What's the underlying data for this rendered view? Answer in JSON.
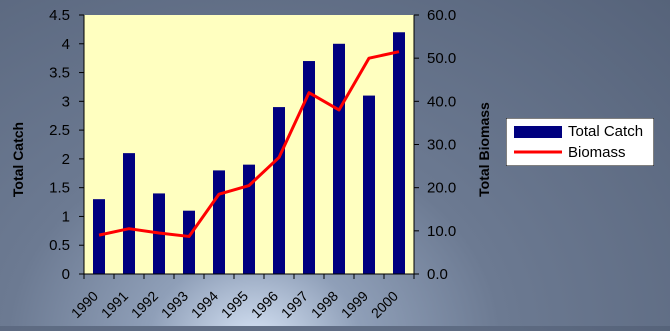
{
  "chart_data": {
    "type": "bar",
    "categories": [
      "1990",
      "1991",
      "1992",
      "1993",
      "1994",
      "1995",
      "1996",
      "1997",
      "1998",
      "1999",
      "2000"
    ],
    "series": [
      {
        "name": "Total Catch",
        "type": "bar",
        "axis": "left",
        "color": "#00007f",
        "values": [
          1.3,
          2.1,
          1.4,
          1.1,
          1.8,
          1.9,
          2.9,
          3.7,
          4.0,
          3.1,
          4.2
        ]
      },
      {
        "name": "Biomass",
        "type": "line",
        "axis": "right",
        "color": "#ff0000",
        "values": [
          9.0,
          10.5,
          9.5,
          8.7,
          18.5,
          20.5,
          27.0,
          42.0,
          38.0,
          50.0,
          51.5
        ]
      }
    ],
    "ylabel": "Total Catch",
    "ylabel_right": "Total Biomass",
    "ylim": [
      0,
      4.5
    ],
    "ylim_right": [
      0,
      60
    ],
    "yticks": [
      "0",
      "0.5",
      "1",
      "1.5",
      "2",
      "2.5",
      "3",
      "3.5",
      "4",
      "4.5"
    ],
    "yticks_right": [
      "0.0",
      "10.0",
      "20.0",
      "30.0",
      "40.0",
      "50.0",
      "60.0"
    ],
    "plot_background": "#ffffc0",
    "legend_position": "right"
  }
}
